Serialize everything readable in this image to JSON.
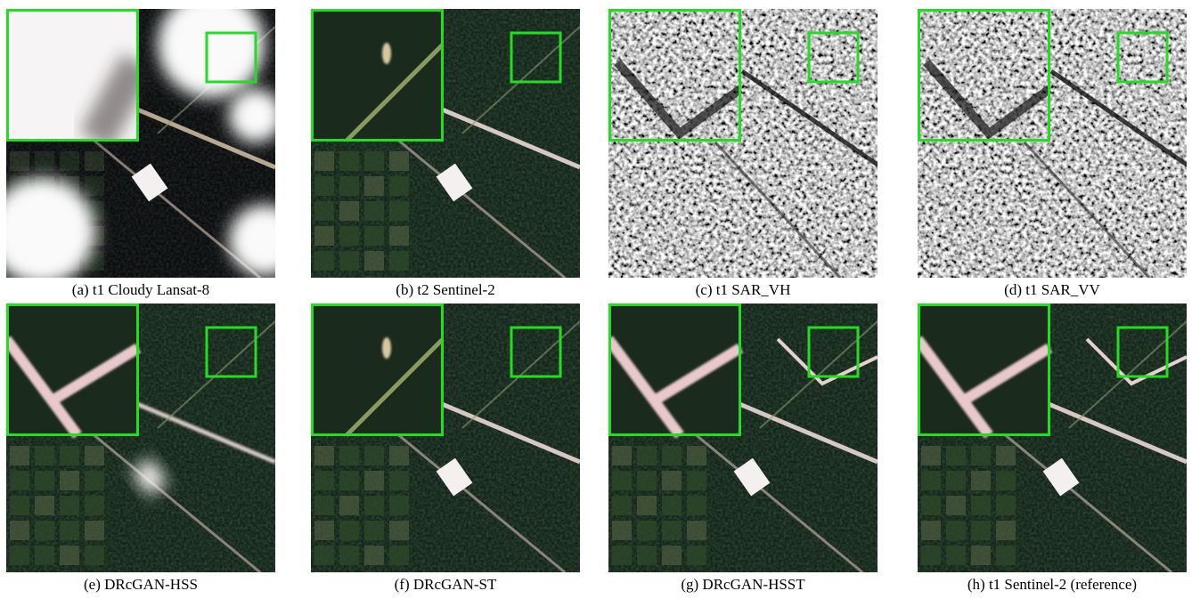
{
  "panels": [
    {
      "caption": "(a) t1 Cloudy Lansat-8"
    },
    {
      "caption": "(b) t2 Sentinel-2"
    },
    {
      "caption": "(c) t1 SAR_VH"
    },
    {
      "caption": "(d) t1 SAR_VV"
    },
    {
      "caption": "(e) DRcGAN-HSS"
    },
    {
      "caption": "(f) DRcGAN-ST"
    },
    {
      "caption": "(g) DRcGAN-HSST"
    },
    {
      "caption": "(h) t1 Sentinel-2 (reference)"
    }
  ]
}
